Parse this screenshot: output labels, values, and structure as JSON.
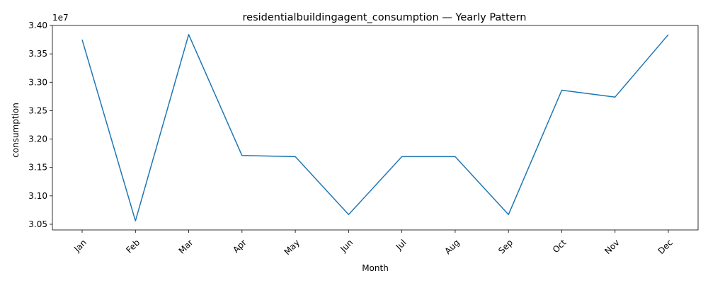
{
  "chart_data": {
    "type": "line",
    "title": "residentialbuildingagent_consumption — Yearly Pattern",
    "xlabel": "Month",
    "ylabel": "consumption",
    "y_offset_label": "1e7",
    "categories": [
      "Jan",
      "Feb",
      "Mar",
      "Apr",
      "May",
      "Jun",
      "Jul",
      "Aug",
      "Sep",
      "Oct",
      "Nov",
      "Dec"
    ],
    "series": [
      {
        "values": [
          33750000,
          30560000,
          33840000,
          31710000,
          31690000,
          30670000,
          31690000,
          31690000,
          30670000,
          32860000,
          32740000,
          33840000
        ]
      }
    ],
    "ylim": [
      30400000,
      34000000
    ],
    "y_ticks": [
      {
        "value": 30500000,
        "label": "3.05"
      },
      {
        "value": 31000000,
        "label": "3.10"
      },
      {
        "value": 31500000,
        "label": "3.15"
      },
      {
        "value": 32000000,
        "label": "3.20"
      },
      {
        "value": 32500000,
        "label": "3.25"
      },
      {
        "value": 33000000,
        "label": "3.30"
      },
      {
        "value": 33500000,
        "label": "3.35"
      },
      {
        "value": 34000000,
        "label": "3.40"
      }
    ],
    "grid": false,
    "line_color": "#1f77b4"
  }
}
